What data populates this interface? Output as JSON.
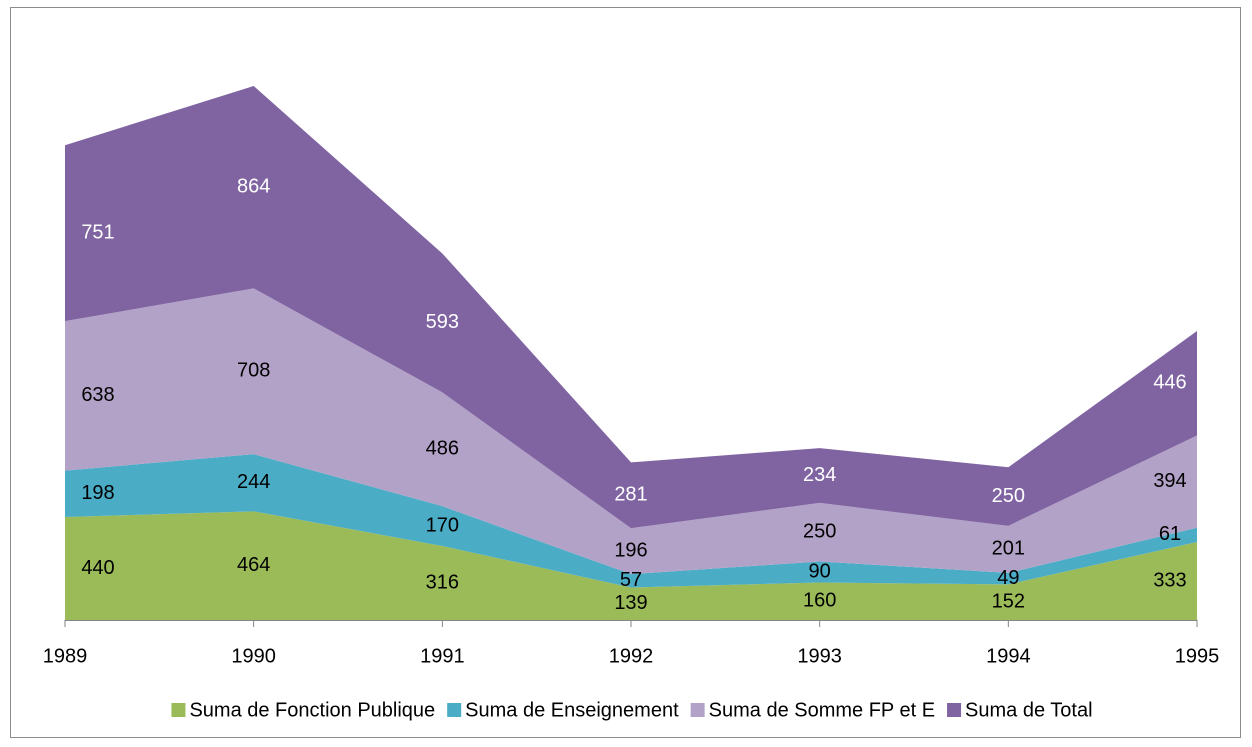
{
  "chart_data": {
    "type": "stacked-area",
    "categories": [
      "1989",
      "1990",
      "1991",
      "1992",
      "1993",
      "1994",
      "1995"
    ],
    "series": [
      {
        "name": "Suma de Fonction Publique",
        "color": "#9bbb59",
        "label_color": "#000000",
        "values": [
          440,
          464,
          316,
          139,
          160,
          152,
          333
        ]
      },
      {
        "name": "Suma de Enseignement",
        "color": "#4bacc6",
        "label_color": "#000000",
        "values": [
          198,
          244,
          170,
          57,
          90,
          49,
          61
        ]
      },
      {
        "name": "Suma de Somme FP et E",
        "color": "#b3a2c7",
        "label_color": "#000000",
        "values": [
          638,
          708,
          486,
          196,
          250,
          201,
          394
        ]
      },
      {
        "name": "Suma de Total",
        "color": "#8064a2",
        "label_color": "#ffffff",
        "values": [
          751,
          864,
          593,
          281,
          234,
          250,
          446
        ]
      }
    ],
    "legend": "bottom"
  }
}
